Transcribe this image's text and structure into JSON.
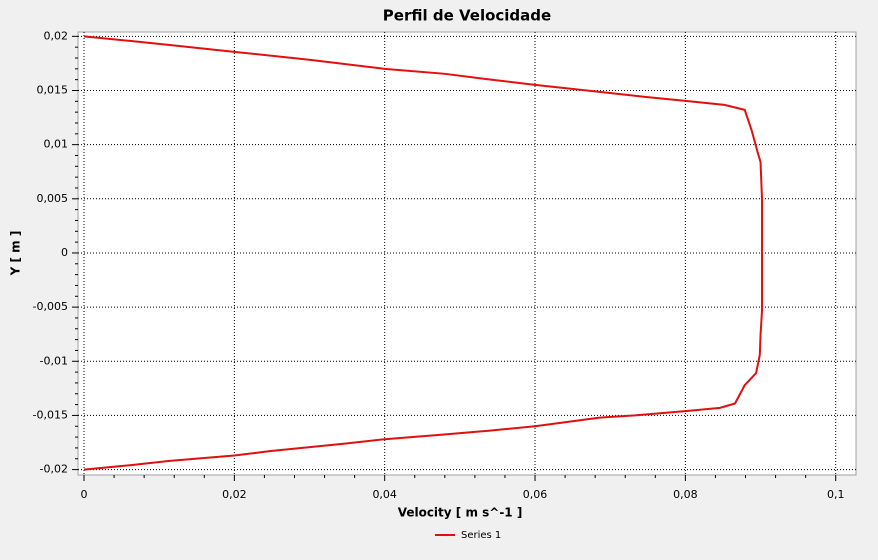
{
  "chart_data": {
    "type": "line",
    "title": "Perfil de Velocidade",
    "x_label": "Velocity [ m s^-1 ]",
    "y_label": "Y [ m ]",
    "x": [
      0,
      0.0061,
      0.0114,
      0.02,
      0.0301,
      0.04,
      0.048,
      0.0533,
      0.06,
      0.0686,
      0.0746,
      0.08,
      0.0852,
      0.0879,
      0.0888,
      0.0896,
      0.09,
      0.0902,
      0.0902,
      0.0902,
      0.09,
      0.0899,
      0.0894,
      0.0879,
      0.0866,
      0.0846,
      0.08,
      0.0733,
      0.0686,
      0.06,
      0.054,
      0.0473,
      0.04,
      0.0347,
      0.0247,
      0.02,
      0.0114,
      0.0061,
      0
    ],
    "series": [
      {
        "name": "Series 1",
        "color": "#e01010",
        "values": [
          0.02,
          0.01958,
          0.0192,
          0.01857,
          0.01783,
          0.017,
          0.01654,
          0.01607,
          0.01552,
          0.01487,
          0.01441,
          0.01404,
          0.01367,
          0.01321,
          0.01136,
          0.00933,
          0.0084,
          0.0049,
          0,
          -0.00527,
          -0.00758,
          -0.00942,
          -0.0111,
          -0.0122,
          -0.0139,
          -0.0143,
          -0.0146,
          -0.015,
          -0.0152,
          -0.016,
          -0.0164,
          -0.0168,
          -0.0172,
          -0.0176,
          -0.0183,
          -0.0187,
          -0.0192,
          -0.0196,
          -0.02
        ]
      }
    ],
    "xlim": [
      -0.0008,
      0.1027
    ],
    "ylim": [
      -0.0205,
      0.0204
    ],
    "xticks": [
      0,
      {
        "value": 0.02,
        "label": "0,02"
      },
      {
        "value": 0.04,
        "label": "0,04"
      },
      {
        "value": 0.06,
        "label": "0,06"
      },
      {
        "value": 0.08,
        "label": "0,08"
      },
      {
        "value": 0.1,
        "label": "0,1"
      }
    ],
    "yticks": [
      {
        "value": -0.02,
        "label": "-0,02"
      },
      {
        "value": -0.015,
        "label": "-0,015"
      },
      {
        "value": -0.01,
        "label": "-0,01"
      },
      {
        "value": -0.005,
        "label": "-0,005"
      },
      0,
      {
        "value": 0.005,
        "label": "0,005"
      },
      {
        "value": 0.01,
        "label": "0,01"
      },
      {
        "value": 0.015,
        "label": "0,015"
      },
      {
        "value": 0.02,
        "label": "0,02"
      }
    ],
    "grid": true,
    "legend": "bottom"
  }
}
